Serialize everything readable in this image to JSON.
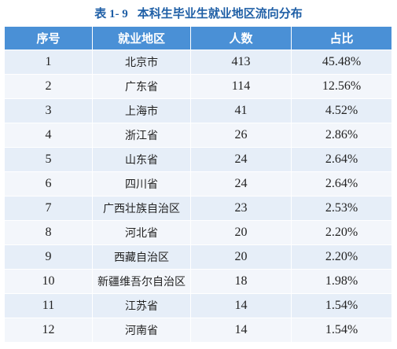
{
  "caption": {
    "number": "表 1- 9",
    "title": "本科生毕业生就业地区流向分布"
  },
  "table": {
    "headers": [
      "序号",
      "就业地区",
      "人数",
      "占比"
    ],
    "rows": [
      {
        "no": "1",
        "region": "北京市",
        "count": "413",
        "share": "45.48%"
      },
      {
        "no": "2",
        "region": "广东省",
        "count": "114",
        "share": "12.56%"
      },
      {
        "no": "3",
        "region": "上海市",
        "count": "41",
        "share": "4.52%"
      },
      {
        "no": "4",
        "region": "浙江省",
        "count": "26",
        "share": "2.86%"
      },
      {
        "no": "5",
        "region": "山东省",
        "count": "24",
        "share": "2.64%"
      },
      {
        "no": "6",
        "region": "四川省",
        "count": "24",
        "share": "2.64%"
      },
      {
        "no": "7",
        "region": "广西壮族自治区",
        "count": "23",
        "share": "2.53%"
      },
      {
        "no": "8",
        "region": "河北省",
        "count": "20",
        "share": "2.20%"
      },
      {
        "no": "9",
        "region": "西藏自治区",
        "count": "20",
        "share": "2.20%"
      },
      {
        "no": "10",
        "region": "新疆维吾尔自治区",
        "count": "18",
        "share": "1.98%"
      },
      {
        "no": "11",
        "region": "江苏省",
        "count": "14",
        "share": "1.54%"
      },
      {
        "no": "12",
        "region": "河南省",
        "count": "14",
        "share": "1.54%"
      }
    ]
  },
  "colors": {
    "caption": "#1f5fa6",
    "header_bg": "#4a90d6",
    "row_odd": "#e6eef8",
    "row_even": "#f3f6fb"
  }
}
